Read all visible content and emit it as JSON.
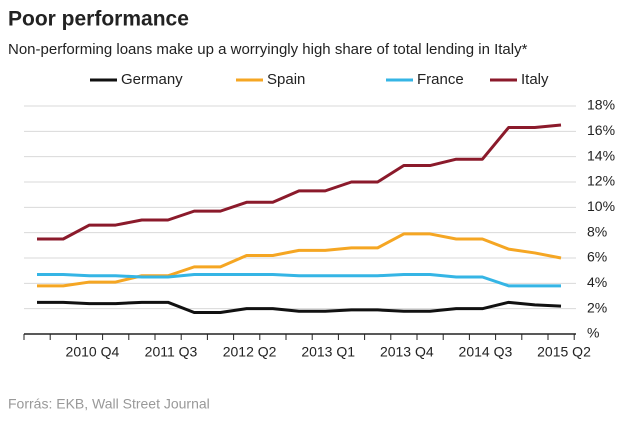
{
  "chart_data": {
    "type": "line",
    "title": "Poor performance",
    "subtitle": "Non-performing loans make up a worryingly high share of total lending in Italy*",
    "source": "Forrás: EKB, Wall Street Journal",
    "categories": [
      null,
      null,
      "2010 Q4",
      null,
      null,
      "2011 Q3",
      null,
      null,
      "2012 Q2",
      null,
      null,
      "2013 Q1",
      null,
      null,
      "2013 Q4",
      null,
      null,
      "2014 Q3",
      null,
      null,
      "2015 Q2"
    ],
    "series": [
      {
        "name": "Germany",
        "color": "#111111",
        "values": [
          2.5,
          2.5,
          2.4,
          2.4,
          2.5,
          2.5,
          1.7,
          1.7,
          2.0,
          2.0,
          1.8,
          1.8,
          1.9,
          1.9,
          1.8,
          1.8,
          2.0,
          2.0,
          2.5,
          2.3,
          2.2
        ]
      },
      {
        "name": "Spain",
        "color": "#f5a623",
        "values": [
          3.8,
          3.8,
          4.1,
          4.1,
          4.6,
          4.6,
          5.3,
          5.3,
          6.2,
          6.2,
          6.6,
          6.6,
          6.8,
          6.8,
          7.9,
          7.9,
          7.5,
          7.5,
          6.7,
          6.4,
          6.0
        ]
      },
      {
        "name": "France",
        "color": "#35b5e5",
        "values": [
          4.7,
          4.7,
          4.6,
          4.6,
          4.5,
          4.5,
          4.7,
          4.7,
          4.7,
          4.7,
          4.6,
          4.6,
          4.6,
          4.6,
          4.7,
          4.7,
          4.5,
          4.5,
          3.8,
          3.8,
          3.8
        ]
      },
      {
        "name": "Italy",
        "color": "#8b1a2b",
        "values": [
          7.5,
          7.5,
          8.6,
          8.6,
          9.0,
          9.0,
          9.7,
          9.7,
          10.4,
          10.4,
          11.3,
          11.3,
          12.0,
          12.0,
          13.3,
          13.3,
          13.8,
          13.8,
          16.3,
          16.3,
          16.5
        ]
      }
    ],
    "ylim": [
      0,
      18
    ],
    "yticks": [
      {
        "value": 0,
        "label": "%"
      },
      {
        "value": 2,
        "label": "2%"
      },
      {
        "value": 4,
        "label": "4%"
      },
      {
        "value": 6,
        "label": "6%"
      },
      {
        "value": 8,
        "label": "8%"
      },
      {
        "value": 10,
        "label": "10%"
      },
      {
        "value": 12,
        "label": "12%"
      },
      {
        "value": 14,
        "label": "14%"
      },
      {
        "value": 16,
        "label": "16%"
      },
      {
        "value": 18,
        "label": "18%"
      }
    ],
    "grid": true
  }
}
